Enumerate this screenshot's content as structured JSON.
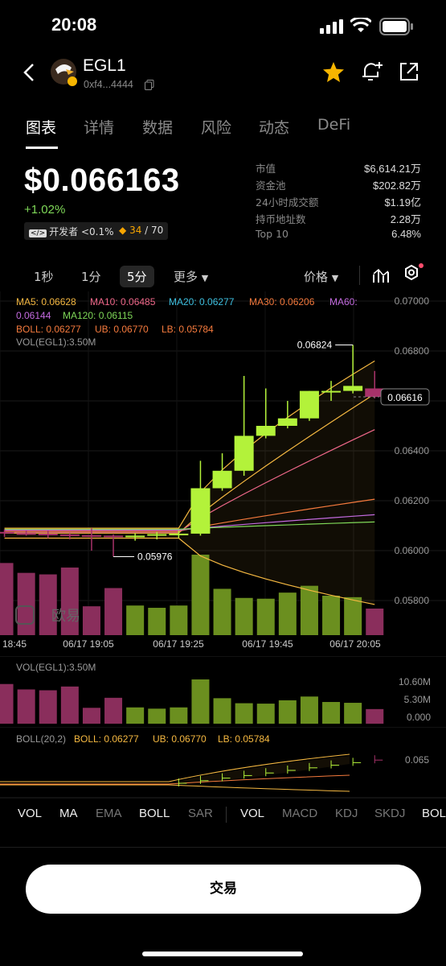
{
  "status_bar": {
    "time": "20:08"
  },
  "header": {
    "token_symbol": "EGL1",
    "contract_address": "0xf4...4444"
  },
  "tabs": [
    {
      "label": "图表",
      "active": true
    },
    {
      "label": "详情",
      "active": false
    },
    {
      "label": "数据",
      "active": false
    },
    {
      "label": "风险",
      "active": false
    },
    {
      "label": "动态",
      "active": false
    },
    {
      "label": "DeFi",
      "active": false
    }
  ],
  "price_block": {
    "price": "$0.066163",
    "change": "+1.02%",
    "badge_dev": "开发者 <0.1%",
    "badge_score": "34",
    "badge_score_total": "/ 70"
  },
  "stats": [
    {
      "label": "市值",
      "value": "$6,614.21万"
    },
    {
      "label": "资金池",
      "value": "$202.82万"
    },
    {
      "label": "24小时成交额",
      "value": "$1.19亿"
    },
    {
      "label": "持币地址数",
      "value": "2.28万"
    },
    {
      "label": "Top 10",
      "value": "6.48%"
    }
  ],
  "chart_toolbar": {
    "intervals": [
      "1秒",
      "1分",
      "5分"
    ],
    "active_interval": "5分",
    "more": "更多",
    "price_toggle": "价格"
  },
  "chart_data": {
    "type": "candlestick",
    "interval": "5分",
    "price_axis": [
      "0.07000",
      "0.06800",
      "0.06600",
      "0.06400",
      "0.06200",
      "0.06000",
      "0.05800"
    ],
    "current_price_label": "0.06616",
    "high_annotation": "0.06824",
    "low_annotation": "0.05976",
    "time_axis": [
      "18:45",
      "06/17 19:05",
      "06/17 19:25",
      "06/17 19:45",
      "06/17 20:05"
    ],
    "ma_legend": [
      {
        "label": "MA5: 0.06628",
        "color": "#f5b841"
      },
      {
        "label": "MA10: 0.06485",
        "color": "#f0688a"
      },
      {
        "label": "MA20: 0.06277",
        "color": "#3ec0e0"
      },
      {
        "label": "MA30: 0.06206",
        "color": "#f57a3d"
      },
      {
        "label": "MA60:",
        "color": "#c46be0"
      },
      {
        "label": "0.06144",
        "color": "#c46be0"
      },
      {
        "label": "MA120: 0.06115",
        "color": "#7fd858"
      }
    ],
    "boll_legend": [
      {
        "label": "BOLL: 0.06277",
        "color": "#f5b841"
      },
      {
        "label": "UB: 0.06770",
        "color": "#f5b841"
      },
      {
        "label": "LB: 0.05784",
        "color": "#f5b841"
      }
    ],
    "vol_legend": "VOL(EGL1):3.50M",
    "candles": [
      {
        "o": 0.06075,
        "h": 0.06085,
        "l": 0.06055,
        "c": 0.0607
      },
      {
        "o": 0.0607,
        "h": 0.0608,
        "l": 0.0606,
        "c": 0.06068
      },
      {
        "o": 0.06068,
        "h": 0.0608,
        "l": 0.0605,
        "c": 0.06065
      },
      {
        "o": 0.06065,
        "h": 0.0607,
        "l": 0.06045,
        "c": 0.06062
      },
      {
        "o": 0.06062,
        "h": 0.0609,
        "l": 0.06,
        "c": 0.0606
      },
      {
        "o": 0.0606,
        "h": 0.06065,
        "l": 0.05976,
        "c": 0.06058
      },
      {
        "o": 0.06058,
        "h": 0.0607,
        "l": 0.0604,
        "c": 0.0606
      },
      {
        "o": 0.0606,
        "h": 0.06075,
        "l": 0.06045,
        "c": 0.06066
      },
      {
        "o": 0.06066,
        "h": 0.0608,
        "l": 0.0605,
        "c": 0.06068
      },
      {
        "o": 0.06068,
        "h": 0.0636,
        "l": 0.0606,
        "c": 0.0625
      },
      {
        "o": 0.0625,
        "h": 0.0639,
        "l": 0.0624,
        "c": 0.0632
      },
      {
        "o": 0.0632,
        "h": 0.067,
        "l": 0.063,
        "c": 0.0646
      },
      {
        "o": 0.0646,
        "h": 0.0665,
        "l": 0.0645,
        "c": 0.065
      },
      {
        "o": 0.065,
        "h": 0.066,
        "l": 0.0649,
        "c": 0.0653
      },
      {
        "o": 0.0653,
        "h": 0.0664,
        "l": 0.0652,
        "c": 0.0664
      },
      {
        "o": 0.0664,
        "h": 0.0668,
        "l": 0.066,
        "c": 0.0664
      },
      {
        "o": 0.0664,
        "h": 0.06824,
        "l": 0.0663,
        "c": 0.0666
      },
      {
        "o": 0.0665,
        "h": 0.0672,
        "l": 0.0661,
        "c": 0.06616
      }
    ],
    "volumes": [
      9.5,
      8.2,
      8.0,
      8.9,
      3.8,
      6.2,
      3.9,
      3.6,
      3.9,
      10.6,
      6.1,
      4.9,
      4.8,
      5.6,
      6.5,
      5.2,
      5.0,
      3.5
    ],
    "ma_lines": [
      {
        "name": "MA5",
        "color": "#f5b841",
        "end": 0.06628
      },
      {
        "name": "MA10",
        "color": "#f0688a",
        "end": 0.06485
      },
      {
        "name": "MA30",
        "color": "#f57a3d",
        "end": 0.06206
      },
      {
        "name": "MA60",
        "color": "#c46be0",
        "end": 0.06144
      },
      {
        "name": "MA120",
        "color": "#7fd858",
        "end": 0.06115
      }
    ],
    "vol_axis": [
      "10.60M",
      "5.30M",
      "0.000"
    ],
    "boll_panel_legend": "BOLL(20,2)",
    "boll_panel_axis": "0.065"
  },
  "indicator_tabs": [
    {
      "label": "VOL",
      "active": true
    },
    {
      "label": "MA",
      "active": true
    },
    {
      "label": "EMA",
      "active": false
    },
    {
      "label": "BOLL",
      "active": true
    },
    {
      "label": "SAR",
      "active": false
    },
    {
      "label": "VOL",
      "active": true
    },
    {
      "label": "MACD",
      "active": false
    },
    {
      "label": "KDJ",
      "active": false
    },
    {
      "label": "SKDJ",
      "active": false
    },
    {
      "label": "BOL",
      "active": true
    }
  ],
  "trade_button": "交易",
  "watermark": "欧易",
  "colors": {
    "up": "#b3f23a",
    "down": "#a8326a",
    "vol_up": "#6b8f1f",
    "vol_down": "#8a2e5c",
    "accent_star": "#f7b500",
    "positive": "#7fd858"
  }
}
